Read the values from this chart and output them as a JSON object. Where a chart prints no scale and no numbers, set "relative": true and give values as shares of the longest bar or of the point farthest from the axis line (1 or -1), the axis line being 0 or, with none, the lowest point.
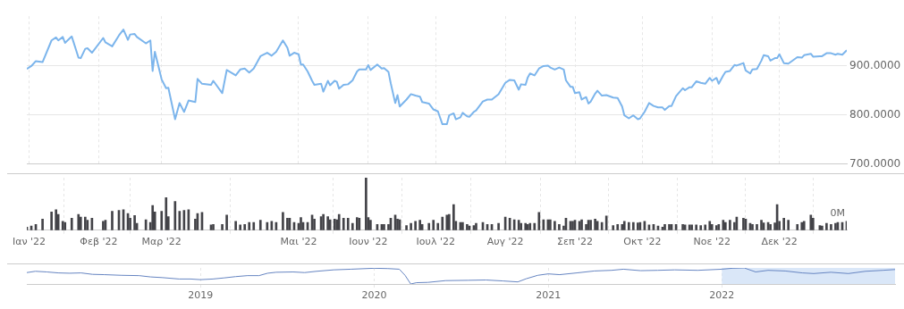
{
  "chart_data": [
    {
      "type": "line",
      "color": "#7cb5ec",
      "marker": "none",
      "grid": true,
      "tick_labels": "y",
      "xlim": [
        "2021-12-31",
        "2022-12-31"
      ],
      "ylim": [
        700,
        1000
      ],
      "xticks": [
        {
          "value": "2022-01-01",
          "label": null
        },
        {
          "value": "2022-02-01",
          "label": null
        },
        {
          "value": "2022-03-01",
          "label": null
        },
        {
          "value": "2022-05-01",
          "label": null
        },
        {
          "value": "2022-06-01",
          "label": null
        },
        {
          "value": "2022-07-01",
          "label": null
        },
        {
          "value": "2022-08-01",
          "label": null
        },
        {
          "value": "2022-09-01",
          "label": null
        },
        {
          "value": "2022-10-01",
          "label": null
        },
        {
          "value": "2022-11-01",
          "label": null
        },
        {
          "value": "2022-12-01",
          "label": null
        }
      ],
      "yticks": [
        {
          "value": 700,
          "label": "700.0000"
        },
        {
          "value": 800,
          "label": "800.0000"
        },
        {
          "value": 900,
          "label": "900.0000"
        }
      ],
      "x": [
        "2021-12-31",
        "2022-01-02",
        "2022-01-04",
        "2022-01-07",
        "2022-01-11",
        "2022-01-13",
        "2022-01-14",
        "2022-01-16",
        "2022-01-17",
        "2022-01-20",
        "2022-01-23",
        "2022-01-24",
        "2022-01-26",
        "2022-01-27",
        "2022-01-29",
        "2022-02-03",
        "2022-02-04",
        "2022-02-07",
        "2022-02-10",
        "2022-02-12",
        "2022-02-14",
        "2022-02-15",
        "2022-02-17",
        "2022-02-18",
        "2022-02-22",
        "2022-02-24",
        "2022-02-25",
        "2022-02-26",
        "2022-03-01",
        "2022-03-03",
        "2022-03-04",
        "2022-03-07",
        "2022-03-09",
        "2022-03-11",
        "2022-03-13",
        "2022-03-16",
        "2022-03-17",
        "2022-03-19",
        "2022-03-23",
        "2022-03-24",
        "2022-03-28",
        "2022-03-30",
        "2022-04-03",
        "2022-04-05",
        "2022-04-07",
        "2022-04-09",
        "2022-04-11",
        "2022-04-14",
        "2022-04-17",
        "2022-04-19",
        "2022-04-21",
        "2022-04-24",
        "2022-04-26",
        "2022-04-27",
        "2022-04-29",
        "2022-05-01",
        "2022-05-02",
        "2022-05-03",
        "2022-05-05",
        "2022-05-07",
        "2022-05-08",
        "2022-05-11",
        "2022-05-12",
        "2022-05-14",
        "2022-05-15",
        "2022-05-17",
        "2022-05-18",
        "2022-05-19",
        "2022-05-21",
        "2022-05-23",
        "2022-05-25",
        "2022-05-27",
        "2022-05-28",
        "2022-05-31",
        "2022-06-01",
        "2022-06-02",
        "2022-06-05",
        "2022-06-07",
        "2022-06-08",
        "2022-06-10",
        "2022-06-11",
        "2022-06-13",
        "2022-06-14",
        "2022-06-15",
        "2022-06-18",
        "2022-06-20",
        "2022-06-22",
        "2022-06-24",
        "2022-06-25",
        "2022-06-28",
        "2022-06-30",
        "2022-07-02",
        "2022-07-04",
        "2022-07-06",
        "2022-07-07",
        "2022-07-09",
        "2022-07-10",
        "2022-07-12",
        "2022-07-13",
        "2022-07-15",
        "2022-07-16",
        "2022-07-18",
        "2022-07-19",
        "2022-07-22",
        "2022-07-24",
        "2022-07-26",
        "2022-07-29",
        "2022-08-01",
        "2022-08-03",
        "2022-08-05",
        "2022-08-07",
        "2022-08-08",
        "2022-08-10",
        "2022-08-11",
        "2022-08-12",
        "2022-08-14",
        "2022-08-16",
        "2022-08-18",
        "2022-08-20",
        "2022-08-21",
        "2022-08-23",
        "2022-08-25",
        "2022-08-27",
        "2022-08-28",
        "2022-08-30",
        "2022-08-31",
        "2022-09-01",
        "2022-09-03",
        "2022-09-04",
        "2022-09-06",
        "2022-09-07",
        "2022-09-08",
        "2022-09-10",
        "2022-09-11",
        "2022-09-13",
        "2022-09-15",
        "2022-09-18",
        "2022-09-20",
        "2022-09-22",
        "2022-09-23",
        "2022-09-25",
        "2022-09-27",
        "2022-09-29",
        "2022-09-30",
        "2022-10-02",
        "2022-10-04",
        "2022-10-06",
        "2022-10-08",
        "2022-10-10",
        "2022-10-11",
        "2022-10-13",
        "2022-10-14",
        "2022-10-16",
        "2022-10-19",
        "2022-10-20",
        "2022-10-22",
        "2022-10-23",
        "2022-10-25",
        "2022-10-27",
        "2022-10-29",
        "2022-10-31",
        "2022-11-01",
        "2022-11-03",
        "2022-11-04",
        "2022-11-06",
        "2022-11-07",
        "2022-11-09",
        "2022-11-11",
        "2022-11-12",
        "2022-11-15",
        "2022-11-16",
        "2022-11-18",
        "2022-11-19",
        "2022-11-21",
        "2022-11-23",
        "2022-11-24",
        "2022-11-26",
        "2022-11-27",
        "2022-11-29",
        "2022-11-30",
        "2022-12-01",
        "2022-12-03",
        "2022-12-05",
        "2022-12-09",
        "2022-12-11",
        "2022-12-12",
        "2022-12-15",
        "2022-12-16",
        "2022-12-19",
        "2022-12-20",
        "2022-12-22",
        "2022-12-24",
        "2022-12-26",
        "2022-12-27",
        "2022-12-29",
        "2022-12-31"
      ],
      "values": [
        893,
        899,
        909,
        907,
        951,
        957,
        951,
        958,
        946,
        959,
        916,
        915,
        934,
        935,
        926,
        956,
        947,
        939,
        961,
        973,
        952,
        963,
        964,
        958,
        945,
        951,
        889,
        928,
        872,
        854,
        855,
        791,
        824,
        806,
        829,
        826,
        873,
        863,
        861,
        869,
        844,
        891,
        880,
        892,
        894,
        886,
        894,
        919,
        926,
        920,
        928,
        951,
        936,
        920,
        926,
        923,
        902,
        902,
        888,
        869,
        861,
        863,
        847,
        869,
        860,
        869,
        867,
        853,
        861,
        862,
        870,
        888,
        892,
        892,
        901,
        891,
        902,
        894,
        895,
        887,
        864,
        824,
        840,
        817,
        831,
        842,
        839,
        837,
        826,
        823,
        811,
        807,
        781,
        781,
        799,
        803,
        791,
        795,
        804,
        797,
        796,
        806,
        809,
        827,
        831,
        831,
        842,
        865,
        871,
        870,
        851,
        862,
        861,
        876,
        884,
        880,
        894,
        899,
        900,
        896,
        892,
        896,
        892,
        870,
        857,
        857,
        844,
        846,
        831,
        836,
        823,
        827,
        843,
        849,
        839,
        840,
        835,
        834,
        817,
        799,
        793,
        799,
        791,
        793,
        806,
        824,
        818,
        815,
        815,
        810,
        818,
        818,
        838,
        854,
        850,
        856,
        856,
        868,
        865,
        863,
        875,
        869,
        875,
        863,
        880,
        887,
        889,
        901,
        900,
        905,
        890,
        884,
        892,
        893,
        910,
        921,
        919,
        910,
        915,
        915,
        923,
        905,
        904,
        917,
        916,
        921,
        924,
        918,
        919,
        919,
        925,
        925,
        922,
        924,
        922,
        931
      ]
    },
    {
      "type": "bar",
      "color": "#434348",
      "relative": true,
      "grid": "x",
      "xlim": [
        "2021-12-31",
        "2022-12-31"
      ],
      "xticks": [
        {
          "value": "2022-01-01",
          "label": "Ιαν '22"
        },
        {
          "value": "2022-02-01",
          "label": "Φεβ '22"
        },
        {
          "value": "2022-03-01",
          "label": "Μαρ '22"
        },
        {
          "value": "2022-05-01",
          "label": "Μαι '22"
        },
        {
          "value": "2022-06-01",
          "label": "Ιουν '22"
        },
        {
          "value": "2022-07-01",
          "label": "Ιουλ '22"
        },
        {
          "value": "2022-08-01",
          "label": "Αυγ '22"
        },
        {
          "value": "2022-09-01",
          "label": "Σεπ '22"
        },
        {
          "value": "2022-10-01",
          "label": "Οκτ '22"
        },
        {
          "value": "2022-11-01",
          "label": "Νοε '22"
        },
        {
          "value": "2022-12-01",
          "label": "Δεκ '22"
        }
      ],
      "annotations": [
        "0M"
      ],
      "x": [
        "2021-12-31",
        "2022-01-02",
        "2022-01-04",
        "2022-01-07",
        "2022-01-11",
        "2022-01-13",
        "2022-01-14",
        "2022-01-16",
        "2022-01-17",
        "2022-01-20",
        "2022-01-23",
        "2022-01-24",
        "2022-01-26",
        "2022-01-27",
        "2022-01-29",
        "2022-02-03",
        "2022-02-04",
        "2022-02-07",
        "2022-02-10",
        "2022-02-12",
        "2022-02-14",
        "2022-02-15",
        "2022-02-17",
        "2022-02-18",
        "2022-02-22",
        "2022-02-24",
        "2022-02-25",
        "2022-02-26",
        "2022-03-01",
        "2022-03-03",
        "2022-03-04",
        "2022-03-07",
        "2022-03-09",
        "2022-03-11",
        "2022-03-13",
        "2022-03-16",
        "2022-03-17",
        "2022-03-19",
        "2022-03-23",
        "2022-03-24",
        "2022-03-28",
        "2022-03-30",
        "2022-04-03",
        "2022-04-05",
        "2022-04-07",
        "2022-04-09",
        "2022-04-11",
        "2022-04-14",
        "2022-04-17",
        "2022-04-19",
        "2022-04-21",
        "2022-04-24",
        "2022-04-26",
        "2022-04-27",
        "2022-04-29",
        "2022-05-01",
        "2022-05-02",
        "2022-05-03",
        "2022-05-05",
        "2022-05-07",
        "2022-05-08",
        "2022-05-11",
        "2022-05-12",
        "2022-05-14",
        "2022-05-15",
        "2022-05-17",
        "2022-05-18",
        "2022-05-19",
        "2022-05-21",
        "2022-05-23",
        "2022-05-25",
        "2022-05-27",
        "2022-05-28",
        "2022-05-31",
        "2022-06-01",
        "2022-06-02",
        "2022-06-05",
        "2022-06-07",
        "2022-06-08",
        "2022-06-10",
        "2022-06-11",
        "2022-06-13",
        "2022-06-14",
        "2022-06-15",
        "2022-06-18",
        "2022-06-20",
        "2022-06-22",
        "2022-06-24",
        "2022-06-25",
        "2022-06-28",
        "2022-06-30",
        "2022-07-02",
        "2022-07-04",
        "2022-07-06",
        "2022-07-07",
        "2022-07-09",
        "2022-07-10",
        "2022-07-12",
        "2022-07-13",
        "2022-07-15",
        "2022-07-16",
        "2022-07-18",
        "2022-07-19",
        "2022-07-22",
        "2022-07-24",
        "2022-07-26",
        "2022-07-29",
        "2022-08-01",
        "2022-08-03",
        "2022-08-05",
        "2022-08-07",
        "2022-08-08",
        "2022-08-10",
        "2022-08-11",
        "2022-08-12",
        "2022-08-14",
        "2022-08-16",
        "2022-08-18",
        "2022-08-20",
        "2022-08-21",
        "2022-08-23",
        "2022-08-25",
        "2022-08-27",
        "2022-08-28",
        "2022-08-30",
        "2022-08-31",
        "2022-09-01",
        "2022-09-03",
        "2022-09-04",
        "2022-09-06",
        "2022-09-07",
        "2022-09-08",
        "2022-09-10",
        "2022-09-11",
        "2022-09-13",
        "2022-09-15",
        "2022-09-18",
        "2022-09-20",
        "2022-09-22",
        "2022-09-23",
        "2022-09-25",
        "2022-09-27",
        "2022-09-29",
        "2022-09-30",
        "2022-10-02",
        "2022-10-04",
        "2022-10-06",
        "2022-10-08",
        "2022-10-10",
        "2022-10-11",
        "2022-10-13",
        "2022-10-14",
        "2022-10-16",
        "2022-10-19",
        "2022-10-20",
        "2022-10-22",
        "2022-10-23",
        "2022-10-25",
        "2022-10-27",
        "2022-10-29",
        "2022-10-31",
        "2022-11-01",
        "2022-11-03",
        "2022-11-04",
        "2022-11-06",
        "2022-11-07",
        "2022-11-09",
        "2022-11-11",
        "2022-11-12",
        "2022-11-15",
        "2022-11-16",
        "2022-11-18",
        "2022-11-19",
        "2022-11-21",
        "2022-11-23",
        "2022-11-24",
        "2022-11-26",
        "2022-11-27",
        "2022-11-29",
        "2022-11-30",
        "2022-12-01",
        "2022-12-03",
        "2022-12-05",
        "2022-12-09",
        "2022-12-11",
        "2022-12-12",
        "2022-12-15",
        "2022-12-16",
        "2022-12-19",
        "2022-12-20",
        "2022-12-22",
        "2022-12-24",
        "2022-12-26",
        "2022-12-27",
        "2022-12-29",
        "2022-12-31"
      ],
      "values": [
        0.06,
        0.08,
        0.11,
        0.21,
        0.35,
        0.39,
        0.3,
        0.17,
        0.15,
        0.23,
        0.3,
        0.25,
        0.25,
        0.19,
        0.23,
        0.17,
        0.19,
        0.36,
        0.38,
        0.39,
        0.32,
        0.23,
        0.28,
        0.13,
        0.2,
        0.15,
        0.47,
        0.35,
        0.36,
        0.62,
        0.26,
        0.55,
        0.36,
        0.38,
        0.39,
        0.21,
        0.32,
        0.34,
        0.1,
        0.11,
        0.11,
        0.29,
        0.17,
        0.1,
        0.11,
        0.15,
        0.15,
        0.19,
        0.15,
        0.17,
        0.15,
        0.34,
        0.23,
        0.23,
        0.15,
        0.13,
        0.24,
        0.15,
        0.15,
        0.29,
        0.21,
        0.26,
        0.3,
        0.26,
        0.2,
        0.21,
        0.2,
        0.3,
        0.23,
        0.23,
        0.13,
        0.24,
        0.23,
        1,
        0.24,
        0.19,
        0.11,
        0.11,
        0.11,
        0.11,
        0.23,
        0.29,
        0.21,
        0.2,
        0.09,
        0.13,
        0.17,
        0.19,
        0.11,
        0.13,
        0.19,
        0.13,
        0.25,
        0.29,
        0.3,
        0.49,
        0.17,
        0.15,
        0.15,
        0.11,
        0.08,
        0.09,
        0.13,
        0.15,
        0.11,
        0.11,
        0.13,
        0.25,
        0.23,
        0.2,
        0.19,
        0.13,
        0.13,
        0.11,
        0.13,
        0.13,
        0.34,
        0.2,
        0.2,
        0.2,
        0.17,
        0.11,
        0.08,
        0.23,
        0.17,
        0.17,
        0.19,
        0.17,
        0.2,
        0.11,
        0.19,
        0.19,
        0.21,
        0.17,
        0.15,
        0.27,
        0.09,
        0.11,
        0.11,
        0.17,
        0.15,
        0.15,
        0.14,
        0.15,
        0.17,
        0.1,
        0.11,
        0.08,
        0.06,
        0.11,
        0.11,
        0.11,
        0.11,
        0.11,
        0.1,
        0.1,
        0.1,
        0.1,
        0.09,
        0.1,
        0.17,
        0.11,
        0.09,
        0.11,
        0.19,
        0.15,
        0.19,
        0.15,
        0.25,
        0.23,
        0.21,
        0.13,
        0.11,
        0.11,
        0.19,
        0.14,
        0.15,
        0.11,
        0.14,
        0.49,
        0.17,
        0.23,
        0.19,
        0.11,
        0.15,
        0.17,
        0.29,
        0.23,
        0.09,
        0.08,
        0.13,
        0.11,
        0.13,
        0.15,
        0.15,
        0.17
      ]
    },
    {
      "type": "line",
      "color": "#6685c2",
      "relative": true,
      "marker": "none",
      "grid": "x",
      "tick_labels": "x",
      "xlim": [
        "2018-01-01",
        "2022-12-31"
      ],
      "xticks": [
        {
          "value": "2019-01-01",
          "label": "2019"
        },
        {
          "value": "2020-01-01",
          "label": "2020"
        },
        {
          "value": "2021-01-01",
          "label": "2021"
        },
        {
          "value": "2022-01-01",
          "label": "2022"
        }
      ],
      "bands": [
        {
          "axis": "x",
          "from": "2022-01-01",
          "to": "2022-12-31",
          "color": "#cddff5"
        }
      ],
      "x": [
        "2018-01-01",
        "2018-01-19",
        "2018-02-12",
        "2018-03-08",
        "2018-04-01",
        "2018-04-25",
        "2018-05-19",
        "2018-06-13",
        "2018-07-19",
        "2018-08-25",
        "2018-09-18",
        "2018-10-12",
        "2018-11-17",
        "2018-12-11",
        "2019-01-01",
        "2019-01-27",
        "2019-02-20",
        "2019-03-16",
        "2019-04-10",
        "2019-05-04",
        "2019-05-22",
        "2019-06-09",
        "2019-07-15",
        "2019-08-08",
        "2019-09-02",
        "2019-10-08",
        "2019-11-13",
        "2020-01-01",
        "2020-01-30",
        "2020-02-23",
        "2020-03-06",
        "2020-03-18",
        "2020-03-30",
        "2020-04-23",
        "2020-05-30",
        "2020-07-17",
        "2020-08-23",
        "2020-09-28",
        "2020-10-29",
        "2020-11-16",
        "2020-12-10",
        "2021-01-01",
        "2021-01-25",
        "2021-03-02",
        "2021-04-08",
        "2021-05-14",
        "2021-06-08",
        "2021-07-14",
        "2021-08-19",
        "2021-09-24",
        "2021-11-11",
        "2022-01-01",
        "2022-01-23",
        "2022-02-17",
        "2022-03-13",
        "2022-04-08",
        "2022-05-14",
        "2022-06-19",
        "2022-07-13",
        "2022-08-18",
        "2022-09-24",
        "2022-10-30",
        "2022-12-05",
        "2022-12-31"
      ],
      "values": [
        0.71,
        0.79,
        0.75,
        0.69,
        0.67,
        0.69,
        0.6,
        0.58,
        0.54,
        0.52,
        0.44,
        0.4,
        0.31,
        0.31,
        0.27,
        0.31,
        0.38,
        0.46,
        0.52,
        0.52,
        0.67,
        0.73,
        0.75,
        0.71,
        0.79,
        0.88,
        0.92,
        0.98,
        0.96,
        0.92,
        0.54,
        0,
        0.08,
        0.1,
        0.21,
        0.23,
        0.25,
        0.19,
        0.13,
        0.33,
        0.54,
        0.63,
        0.58,
        0.69,
        0.81,
        0.85,
        0.92,
        0.83,
        0.85,
        0.88,
        0.85,
        0.92,
        0.98,
        1,
        0.75,
        0.85,
        0.81,
        0.69,
        0.65,
        0.73,
        0.65,
        0.79,
        0.85,
        0.9
      ]
    }
  ]
}
